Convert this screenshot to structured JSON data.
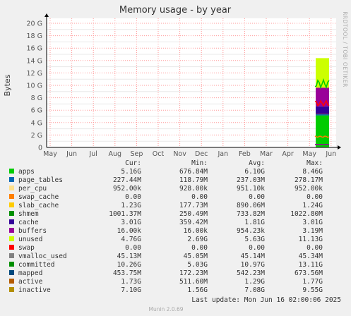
{
  "chart_data": {
    "type": "area",
    "title": "Memory usage - by year",
    "ylabel": "Bytes",
    "side_label": "RRDTOOL / TOBI OETIKER",
    "yticks": [
      "0",
      "2 G",
      "4 G",
      "6 G",
      "8 G",
      "10 G",
      "12 G",
      "14 G",
      "16 G",
      "18 G",
      "20 G"
    ],
    "ylim": [
      0,
      20
    ],
    "y_unit": "G",
    "xticks": [
      "May",
      "Jun",
      "Jul",
      "Aug",
      "Sep",
      "Oct",
      "Nov",
      "Dec",
      "Jan",
      "Feb",
      "Mar",
      "Apr",
      "May",
      "Jun"
    ],
    "grid": true,
    "stack_series": [
      {
        "name": "apps",
        "color": "#00cc00",
        "values": [
          5.16
        ]
      },
      {
        "name": "page_tables",
        "color": "#0066b3",
        "values": [
          0.227
        ]
      },
      {
        "name": "per_cpu",
        "color": "#ff8000",
        "values": [
          0.001
        ]
      },
      {
        "name": "swap_cache",
        "color": "#ffcc00",
        "values": [
          0.0
        ]
      },
      {
        "name": "slab_cache",
        "color": "#330099",
        "values": [
          1.23
        ]
      },
      {
        "name": "cache",
        "color": "#990099",
        "values": [
          3.01
        ]
      },
      {
        "name": "buffers",
        "color": "#ccff00",
        "values": [
          0.0
        ]
      },
      {
        "name": "unused",
        "color": "#ccff00",
        "values": [
          4.76
        ]
      },
      {
        "name": "swap",
        "color": "#ff0000",
        "values": [
          0.0
        ]
      }
    ],
    "line_series": [
      {
        "name": "committed",
        "color": "#00cc00",
        "values": [
          10.26
        ]
      },
      {
        "name": "mapped",
        "color": "#990099",
        "values": [
          0.454
        ]
      },
      {
        "name": "active",
        "color": "#ff8000",
        "values": [
          1.73
        ]
      },
      {
        "name": "inactive",
        "color": "#ff0000",
        "values": [
          7.1
        ]
      }
    ],
    "legend_headers": [
      "Cur:",
      "Min:",
      "Avg:",
      "Max:"
    ],
    "legend": [
      {
        "name": "apps",
        "color": "#00cc00",
        "cur": "5.16G",
        "min": "676.84M",
        "avg": "6.10G",
        "max": "8.46G"
      },
      {
        "name": "page_tables",
        "color": "#0066b3",
        "cur": "227.44M",
        "min": "118.79M",
        "avg": "237.03M",
        "max": "278.17M"
      },
      {
        "name": "per_cpu",
        "color": "#ffe08a",
        "cur": "952.00k",
        "min": "928.00k",
        "avg": "951.10k",
        "max": "952.00k"
      },
      {
        "name": "swap_cache",
        "color": "#ff8000",
        "cur": "0.00",
        "min": "0.00",
        "avg": "0.00",
        "max": "0.00"
      },
      {
        "name": "slab_cache",
        "color": "#ffcc00",
        "cur": "1.23G",
        "min": "177.73M",
        "avg": "890.06M",
        "max": "1.24G"
      },
      {
        "name": "shmem",
        "color": "#008f00",
        "cur": "1001.37M",
        "min": "250.49M",
        "avg": "733.82M",
        "max": "1022.80M"
      },
      {
        "name": "cache",
        "color": "#330099",
        "cur": "3.01G",
        "min": "359.42M",
        "avg": "1.81G",
        "max": "3.01G"
      },
      {
        "name": "buffers",
        "color": "#990099",
        "cur": "16.00k",
        "min": "16.00k",
        "avg": "954.23k",
        "max": "3.19M"
      },
      {
        "name": "unused",
        "color": "#ccff00",
        "cur": "4.76G",
        "min": "2.69G",
        "avg": "5.63G",
        "max": "11.13G"
      },
      {
        "name": "swap",
        "color": "#ff0000",
        "cur": "0.00",
        "min": "0.00",
        "avg": "0.00",
        "max": "0.00"
      },
      {
        "name": "vmalloc_used",
        "color": "#808080",
        "cur": "45.13M",
        "min": "45.05M",
        "avg": "45.14M",
        "max": "45.34M"
      },
      {
        "name": "committed",
        "color": "#008f00",
        "cur": "10.26G",
        "min": "5.03G",
        "avg": "10.97G",
        "max": "13.11G"
      },
      {
        "name": "mapped",
        "color": "#00487d",
        "cur": "453.75M",
        "min": "172.23M",
        "avg": "542.23M",
        "max": "673.56M"
      },
      {
        "name": "active",
        "color": "#b35a00",
        "cur": "1.73G",
        "min": "511.60M",
        "avg": "1.29G",
        "max": "1.77G"
      },
      {
        "name": "inactive",
        "color": "#b38f00",
        "cur": "7.10G",
        "min": "1.56G",
        "avg": "7.08G",
        "max": "9.55G"
      }
    ]
  },
  "last_update": "Last update: Mon Jun 16 02:00:06 2025",
  "footer": "Munin 2.0.69"
}
